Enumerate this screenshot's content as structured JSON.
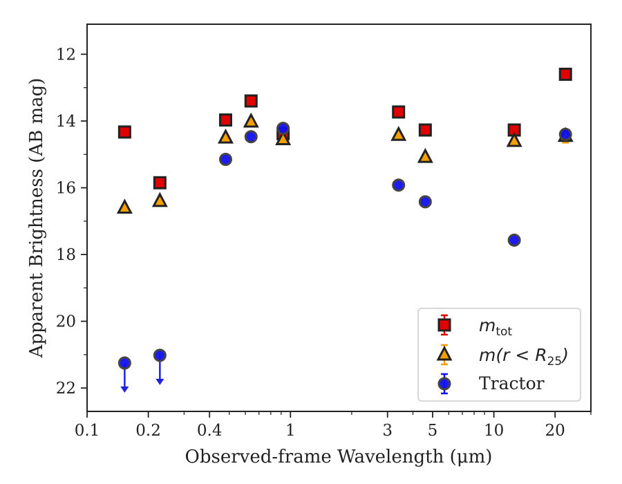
{
  "chart_data": {
    "type": "scatter",
    "title": "",
    "xlabel": "Observed-frame Wavelength (μm)",
    "ylabel": "Apparent Brightness (AB mag)",
    "xscale": "log",
    "xlim": [
      0.1,
      30
    ],
    "ylim": [
      22.7,
      11.1
    ],
    "y_inverted": true,
    "x_tick_labels": [
      "0.1",
      "0.2",
      "0.4",
      "1",
      "3",
      "5",
      "10",
      "20"
    ],
    "y_tick_labels": [
      "12",
      "14",
      "16",
      "18",
      "20",
      "22"
    ],
    "legend_position": "lower-right",
    "series": [
      {
        "name": "m_tot",
        "legend_label": "m",
        "legend_subscript": "tot",
        "marker": "square",
        "color": "#e00000",
        "edge_color": "#222222",
        "errorbar_color": "#e00000",
        "points": [
          {
            "x": 0.153,
            "y": 14.33
          },
          {
            "x": 0.228,
            "y": 15.85
          },
          {
            "x": 0.48,
            "y": 13.97
          },
          {
            "x": 0.64,
            "y": 13.4
          },
          {
            "x": 0.92,
            "y": 14.38
          },
          {
            "x": 3.4,
            "y": 13.73
          },
          {
            "x": 4.6,
            "y": 14.27
          },
          {
            "x": 12.6,
            "y": 14.27
          },
          {
            "x": 22.5,
            "y": 12.6
          }
        ]
      },
      {
        "name": "m(r < R25)",
        "legend_label": "m(r < R",
        "legend_subscript": "25",
        "marker": "triangle",
        "color": "#f5a000",
        "edge_color": "#222222",
        "errorbar_color": "#f5a000",
        "points": [
          {
            "x": 0.153,
            "y": 16.6
          },
          {
            "x": 0.228,
            "y": 16.4
          },
          {
            "x": 0.48,
            "y": 14.5
          },
          {
            "x": 0.64,
            "y": 14.02
          },
          {
            "x": 0.92,
            "y": 14.55
          },
          {
            "x": 3.4,
            "y": 14.42
          },
          {
            "x": 4.6,
            "y": 15.08
          },
          {
            "x": 12.6,
            "y": 14.6
          },
          {
            "x": 22.5,
            "y": 14.45,
            "yerr": 0.2
          }
        ]
      },
      {
        "name": "Tractor",
        "legend_label": "Tractor",
        "marker": "circle",
        "color": "#1010f0",
        "edge_color": "#444444",
        "errorbar_color": "#1010f0",
        "points": [
          {
            "x": 0.153,
            "y": 21.25,
            "upper_limit": true
          },
          {
            "x": 0.228,
            "y": 21.02,
            "upper_limit": true
          },
          {
            "x": 0.48,
            "y": 15.15
          },
          {
            "x": 0.64,
            "y": 14.47
          },
          {
            "x": 0.92,
            "y": 14.22
          },
          {
            "x": 3.4,
            "y": 15.92
          },
          {
            "x": 4.6,
            "y": 16.42
          },
          {
            "x": 12.6,
            "y": 17.57
          },
          {
            "x": 22.5,
            "y": 14.4
          }
        ]
      }
    ]
  }
}
